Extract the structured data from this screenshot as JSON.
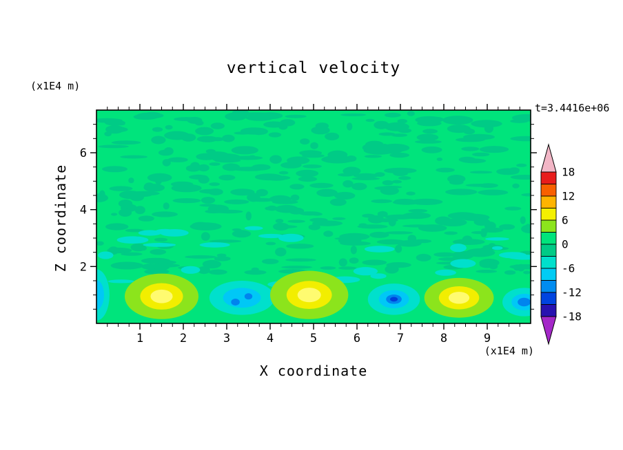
{
  "title": "vertical velocity",
  "time_label": "t=3.4416e+06",
  "y_axis_units": "(x1E4 m)",
  "x_axis_units": "(x1E4 m)",
  "chart_data": {
    "type": "heatmap",
    "title": "vertical velocity",
    "xlabel": "X coordinate",
    "ylabel": "Z coordinate",
    "xlim": [
      0,
      10
    ],
    "ylim": [
      0,
      7.5
    ],
    "x_ticks": [
      1,
      2,
      3,
      4,
      5,
      6,
      7,
      8,
      9
    ],
    "y_ticks": [
      2,
      4,
      6
    ],
    "x_minor_step": 0.25,
    "y_minor_step": 0.5,
    "background_value": 0,
    "background_color": "#00e47c",
    "speckle": {
      "color": "#00cb86",
      "count": 340,
      "seed": 1234567
    },
    "cyan_patches": {
      "color": "#00e0cc",
      "count": 24,
      "seed": 424242
    },
    "palette": {
      "updraft_layers": [
        "#8ce41c",
        "#f2ee00",
        "#fffb70",
        "#ffc83c"
      ],
      "downdraft_layers": [
        "#00e0cc",
        "#00c8f6",
        "#0084ee",
        "#0040da"
      ]
    },
    "colorbar": {
      "levels": [
        -18,
        -15,
        -12,
        -9,
        -6,
        -3,
        0,
        3,
        6,
        9,
        12,
        15,
        18
      ],
      "tick_labels": [
        "18",
        "12",
        "6",
        "0",
        "-6",
        "-12",
        "-18"
      ],
      "band_colors_top_to_bottom": [
        "#e81c1c",
        "#f86000",
        "#ffb400",
        "#f4f000",
        "#8ce41c",
        "#00e47c",
        "#00cb86",
        "#00e0cc",
        "#00ccf4",
        "#008cf0",
        "#0044e0",
        "#2812b0"
      ],
      "top_tip_color": "#f2b6c6",
      "bottom_tip_color": "#a428c8"
    },
    "features": [
      {
        "kind": "updraft",
        "x": 1.5,
        "z": 0.95,
        "rx": 0.85,
        "rz": 0.8,
        "strength": 3
      },
      {
        "kind": "downdraft",
        "x": 3.35,
        "z": 0.9,
        "rx": 0.75,
        "rz": 0.6,
        "strength": 2
      },
      {
        "kind": "downdraft",
        "x": 3.2,
        "z": 0.75,
        "rx": 0.1,
        "rz": 0.12,
        "color_index": 2
      },
      {
        "kind": "downdraft",
        "x": 3.5,
        "z": 0.95,
        "rx": 0.09,
        "rz": 0.11,
        "color_index": 2
      },
      {
        "kind": "updraft",
        "x": 4.9,
        "z": 1.0,
        "rx": 0.9,
        "rz": 0.85,
        "strength": 3
      },
      {
        "kind": "downdraft",
        "x": 6.85,
        "z": 0.85,
        "rx": 0.6,
        "rz": 0.55,
        "strength": 4
      },
      {
        "kind": "updraft",
        "x": 8.35,
        "z": 0.9,
        "rx": 0.8,
        "rz": 0.7,
        "strength": 3
      },
      {
        "kind": "downdraft",
        "x": 9.85,
        "z": 0.75,
        "rx": 0.5,
        "rz": 0.5,
        "strength": 3
      },
      {
        "kind": "downdraft",
        "x": 0.0,
        "z": 1.0,
        "rx": 0.3,
        "rz": 0.9,
        "strength": 2
      }
    ]
  }
}
